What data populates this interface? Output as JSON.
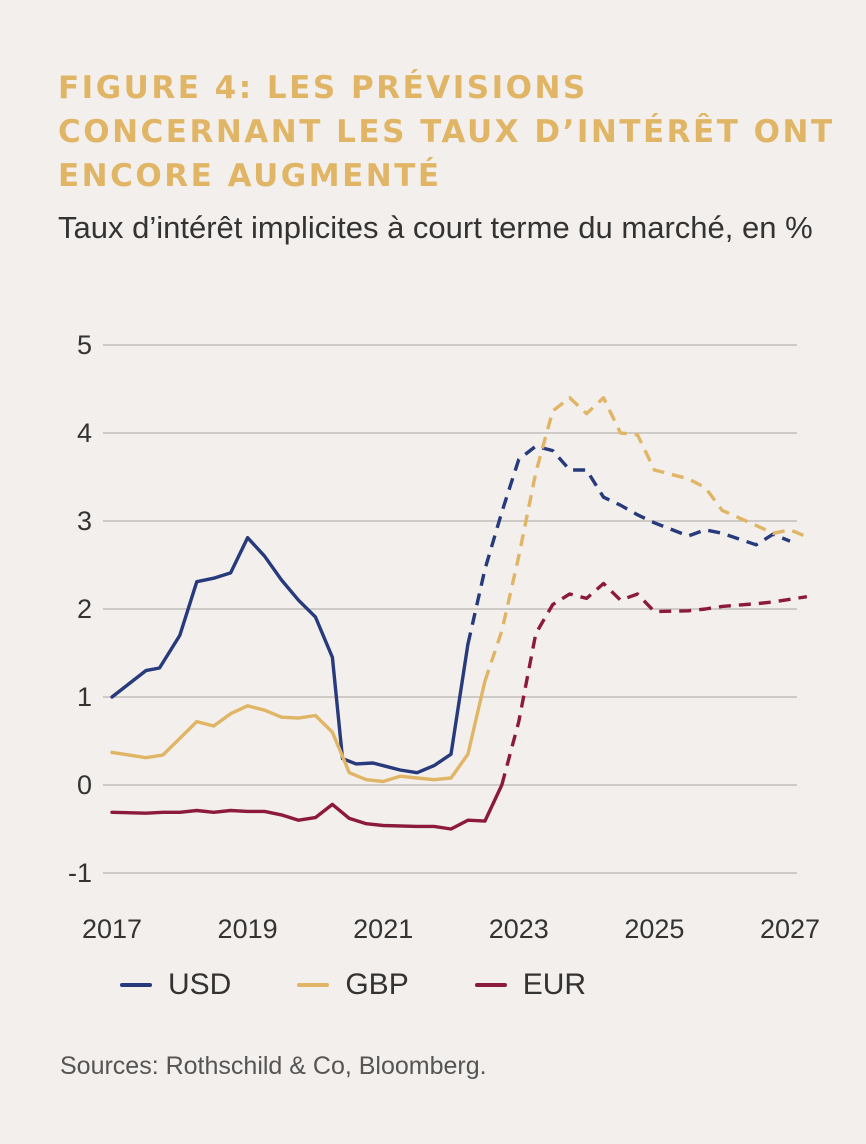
{
  "header": {
    "title": "FIGURE 4: LES PRÉVISIONS CONCERNANT LES TAUX D’INTÉRÊT ONT ENCORE AUGMENTÉ",
    "subtitle": "Taux d’intérêt implicites à court terme du marché, en %"
  },
  "footer": {
    "source": "Sources: Rothschild & Co, Bloomberg."
  },
  "chart_data": {
    "type": "line",
    "title": "FIGURE 4: LES PRÉVISIONS CONCERNANT LES TAUX D’INTÉRÊT ONT ENCORE AUGMENTÉ",
    "subtitle": "Taux d’intérêt implicites à court terme du marché, en %",
    "xlabel": "",
    "ylabel": "",
    "xlim": [
      2017,
      2027
    ],
    "ylim": [
      -1,
      5
    ],
    "x_ticks": [
      2017,
      2019,
      2021,
      2023,
      2025,
      2027
    ],
    "y_ticks": [
      5,
      4,
      3,
      2,
      1,
      0,
      -1
    ],
    "grid": true,
    "legend_position": "bottom",
    "dashed_from": {
      "USD": 2022.25,
      "GBP": 2022.5,
      "EUR": 2022.75
    },
    "series": [
      {
        "name": "USD",
        "color": "#263a7c",
        "points": [
          [
            2017.0,
            1.0
          ],
          [
            2017.5,
            1.3
          ],
          [
            2017.7,
            1.33
          ],
          [
            2018.0,
            1.7
          ],
          [
            2018.25,
            2.31
          ],
          [
            2018.5,
            2.35
          ],
          [
            2018.75,
            2.41
          ],
          [
            2019.0,
            2.81
          ],
          [
            2019.25,
            2.6
          ],
          [
            2019.5,
            2.33
          ],
          [
            2019.75,
            2.1
          ],
          [
            2020.0,
            1.91
          ],
          [
            2020.25,
            1.45
          ],
          [
            2020.4,
            0.3
          ],
          [
            2020.6,
            0.24
          ],
          [
            2020.85,
            0.25
          ],
          [
            2021.25,
            0.17
          ],
          [
            2021.5,
            0.14
          ],
          [
            2021.75,
            0.22
          ],
          [
            2022.0,
            0.35
          ],
          [
            2022.25,
            1.6
          ],
          [
            2022.5,
            2.45
          ],
          [
            2022.75,
            3.1
          ],
          [
            2023.0,
            3.7
          ],
          [
            2023.25,
            3.85
          ],
          [
            2023.5,
            3.8
          ],
          [
            2023.75,
            3.58
          ],
          [
            2024.0,
            3.58
          ],
          [
            2024.25,
            3.27
          ],
          [
            2024.5,
            3.18
          ],
          [
            2024.75,
            3.07
          ],
          [
            2025.0,
            2.98
          ],
          [
            2025.5,
            2.83
          ],
          [
            2025.75,
            2.9
          ],
          [
            2026.0,
            2.86
          ],
          [
            2026.5,
            2.73
          ],
          [
            2026.75,
            2.85
          ],
          [
            2027.0,
            2.77
          ]
        ]
      },
      {
        "name": "GBP",
        "color": "#e0b566",
        "points": [
          [
            2017.0,
            0.37
          ],
          [
            2017.5,
            0.31
          ],
          [
            2017.75,
            0.34
          ],
          [
            2018.0,
            0.53
          ],
          [
            2018.25,
            0.72
          ],
          [
            2018.5,
            0.67
          ],
          [
            2018.75,
            0.81
          ],
          [
            2019.0,
            0.9
          ],
          [
            2019.25,
            0.85
          ],
          [
            2019.5,
            0.77
          ],
          [
            2019.75,
            0.76
          ],
          [
            2020.0,
            0.79
          ],
          [
            2020.25,
            0.6
          ],
          [
            2020.5,
            0.14
          ],
          [
            2020.75,
            0.06
          ],
          [
            2021.0,
            0.04
          ],
          [
            2021.25,
            0.1
          ],
          [
            2021.5,
            0.08
          ],
          [
            2021.75,
            0.06
          ],
          [
            2022.0,
            0.08
          ],
          [
            2022.25,
            0.35
          ],
          [
            2022.5,
            1.18
          ],
          [
            2022.75,
            1.75
          ],
          [
            2023.0,
            2.6
          ],
          [
            2023.25,
            3.55
          ],
          [
            2023.5,
            4.25
          ],
          [
            2023.75,
            4.4
          ],
          [
            2024.0,
            4.22
          ],
          [
            2024.25,
            4.4
          ],
          [
            2024.5,
            4.0
          ],
          [
            2024.75,
            3.98
          ],
          [
            2025.0,
            3.58
          ],
          [
            2025.5,
            3.48
          ],
          [
            2025.75,
            3.38
          ],
          [
            2026.0,
            3.12
          ],
          [
            2026.5,
            2.95
          ],
          [
            2026.75,
            2.86
          ],
          [
            2027.0,
            2.9
          ],
          [
            2027.25,
            2.82
          ]
        ]
      },
      {
        "name": "EUR",
        "color": "#8c1a3e",
        "points": [
          [
            2017.0,
            -0.31
          ],
          [
            2017.5,
            -0.32
          ],
          [
            2017.75,
            -0.31
          ],
          [
            2018.0,
            -0.31
          ],
          [
            2018.25,
            -0.29
          ],
          [
            2018.5,
            -0.31
          ],
          [
            2018.75,
            -0.29
          ],
          [
            2019.0,
            -0.3
          ],
          [
            2019.25,
            -0.3
          ],
          [
            2019.5,
            -0.34
          ],
          [
            2019.75,
            -0.4
          ],
          [
            2020.0,
            -0.37
          ],
          [
            2020.25,
            -0.22
          ],
          [
            2020.5,
            -0.38
          ],
          [
            2020.75,
            -0.44
          ],
          [
            2021.0,
            -0.46
          ],
          [
            2021.5,
            -0.47
          ],
          [
            2021.75,
            -0.47
          ],
          [
            2022.0,
            -0.5
          ],
          [
            2022.25,
            -0.4
          ],
          [
            2022.5,
            -0.41
          ],
          [
            2022.75,
            0.0
          ],
          [
            2023.0,
            0.72
          ],
          [
            2023.25,
            1.72
          ],
          [
            2023.5,
            2.05
          ],
          [
            2023.75,
            2.17
          ],
          [
            2024.0,
            2.12
          ],
          [
            2024.25,
            2.29
          ],
          [
            2024.5,
            2.1
          ],
          [
            2024.75,
            2.17
          ],
          [
            2025.0,
            1.97
          ],
          [
            2025.5,
            1.98
          ],
          [
            2025.75,
            2.0
          ],
          [
            2026.0,
            2.03
          ],
          [
            2026.5,
            2.06
          ],
          [
            2026.75,
            2.08
          ],
          [
            2027.0,
            2.11
          ],
          [
            2027.25,
            2.14
          ]
        ]
      }
    ]
  }
}
